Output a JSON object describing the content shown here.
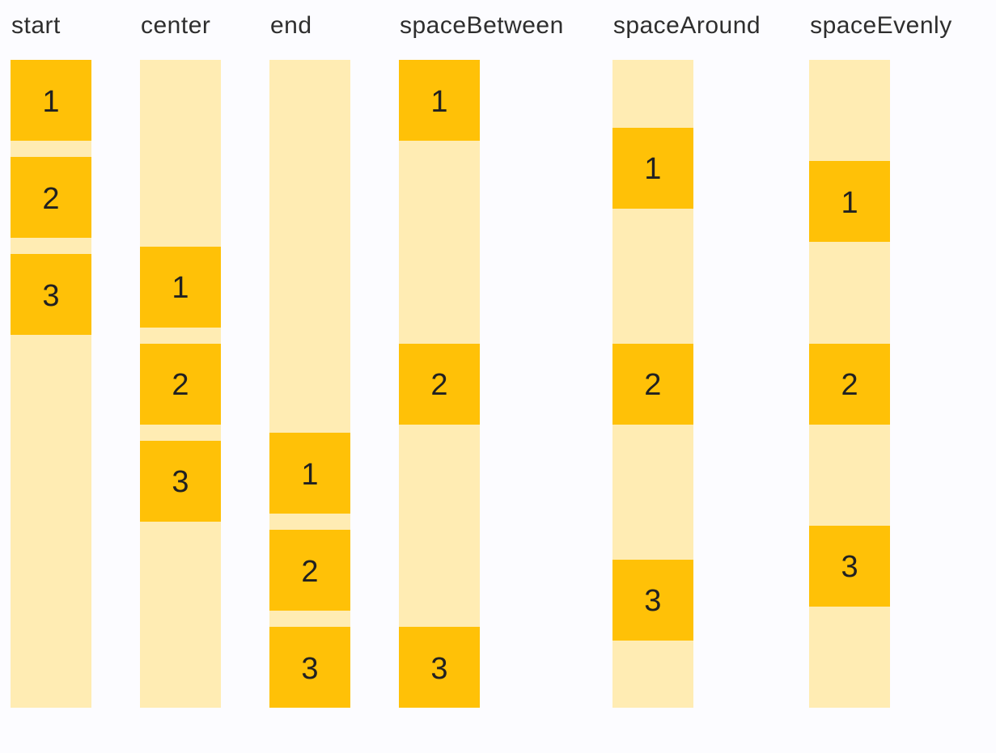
{
  "page": {
    "background": "#FCFCFF"
  },
  "colors": {
    "track": "#FFECB3",
    "item": "#FFC107",
    "item_text": "#212121",
    "label_text": "#2E2E2E"
  },
  "demo": {
    "columns": [
      {
        "label": "start",
        "justify": "flex-start",
        "items": [
          "1",
          "2",
          "3"
        ]
      },
      {
        "label": "center",
        "justify": "center",
        "items": [
          "1",
          "2",
          "3"
        ]
      },
      {
        "label": "end",
        "justify": "flex-end",
        "items": [
          "1",
          "2",
          "3"
        ]
      },
      {
        "label": "spaceBetween",
        "justify": "space-between",
        "items": [
          "1",
          "2",
          "3"
        ]
      },
      {
        "label": "spaceAround",
        "justify": "space-around",
        "items": [
          "1",
          "2",
          "3"
        ]
      },
      {
        "label": "spaceEvenly",
        "justify": "space-evenly",
        "items": [
          "1",
          "2",
          "3"
        ]
      }
    ]
  }
}
